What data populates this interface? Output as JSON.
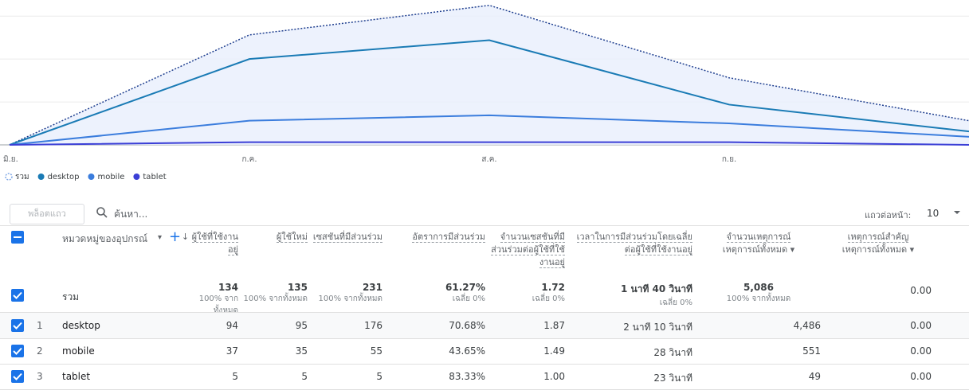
{
  "chart_data": {
    "type": "line",
    "categories": [
      "มิ.ย.",
      "ก.ค.",
      "ส.ค.",
      "ก.ย.",
      null
    ],
    "ylim": [
      0,
      54
    ],
    "yticks": [
      0,
      16,
      32,
      48
    ],
    "grid": true,
    "series": [
      {
        "name": "รวม",
        "color": "#1f3f8f",
        "values": [
          0,
          41,
          52,
          25,
          9
        ]
      },
      {
        "name": "desktop",
        "color": "#1a7bb5",
        "values": [
          0,
          32,
          39,
          15,
          5
        ]
      },
      {
        "name": "mobile",
        "color": "#3b7ddd",
        "values": [
          0,
          9,
          11,
          8,
          3
        ]
      },
      {
        "name": "tablet",
        "color": "#3b3fd6",
        "values": [
          0,
          1,
          1,
          1,
          0
        ]
      }
    ]
  },
  "table": {
    "toolbar": {
      "plot_rows": "พล็อตแถว",
      "search": "ค้นหา...",
      "rows_per_page_label": "แถวต่อหน้า:",
      "rows_per_page": 10
    },
    "dimension": "หมวดหมู่ของอุปกรณ์",
    "columns": [
      {
        "title": "ผู้ใช้ที่ใช้งานอยู่"
      },
      {
        "title": "ผู้ใช้ใหม่"
      },
      {
        "title": "เซสชันที่มีส่วนร่วม"
      },
      {
        "title": "อัตราการมีส่วนร่วม"
      },
      {
        "title": "จำนวนเซสชันที่มีส่วนร่วมต่อผู้ใช้ที่ใช้งานอยู่"
      },
      {
        "title": "เวลาในการมีส่วนร่วมโดยเฉลี่ยต่อผู้ใช้ที่ใช้งานอยู่"
      },
      {
        "title": "จำนวนเหตุการณ์",
        "subtitle": "เหตุการณ์ทั้งหมด"
      },
      {
        "title": "เหตุการณ์สำคัญ",
        "subtitle": "เหตุการณ์ทั้งหมด"
      }
    ],
    "totals": {
      "label": "รวม",
      "cells": [
        {
          "value": "134",
          "note": "100% จากทั้งหมด"
        },
        {
          "value": "135",
          "note": "100% จากทั้งหมด"
        },
        {
          "value": "231",
          "note": "100% จากทั้งหมด"
        },
        {
          "value": "61.27%",
          "note": "เฉลี่ย 0%"
        },
        {
          "value": "1.72",
          "note": "เฉลี่ย 0%"
        },
        {
          "value": "1 นาที 40 วินาที",
          "note": "เฉลี่ย 0%"
        },
        {
          "value": "5,086",
          "note": "100% จากทั้งหมด"
        },
        {
          "value": "0.00"
        }
      ]
    },
    "rows": [
      {
        "index": "1",
        "name": "desktop",
        "cells": [
          "94",
          "95",
          "176",
          "70.68%",
          "1.87",
          "2 นาที 10 วินาที",
          "4,486",
          "0.00"
        ]
      },
      {
        "index": "2",
        "name": "mobile",
        "cells": [
          "37",
          "35",
          "55",
          "43.65%",
          "1.49",
          "28 วินาที",
          "551",
          "0.00"
        ]
      },
      {
        "index": "3",
        "name": "tablet",
        "cells": [
          "5",
          "5",
          "5",
          "83.33%",
          "1.00",
          "23 วินาที",
          "49",
          "0.00"
        ]
      }
    ]
  }
}
